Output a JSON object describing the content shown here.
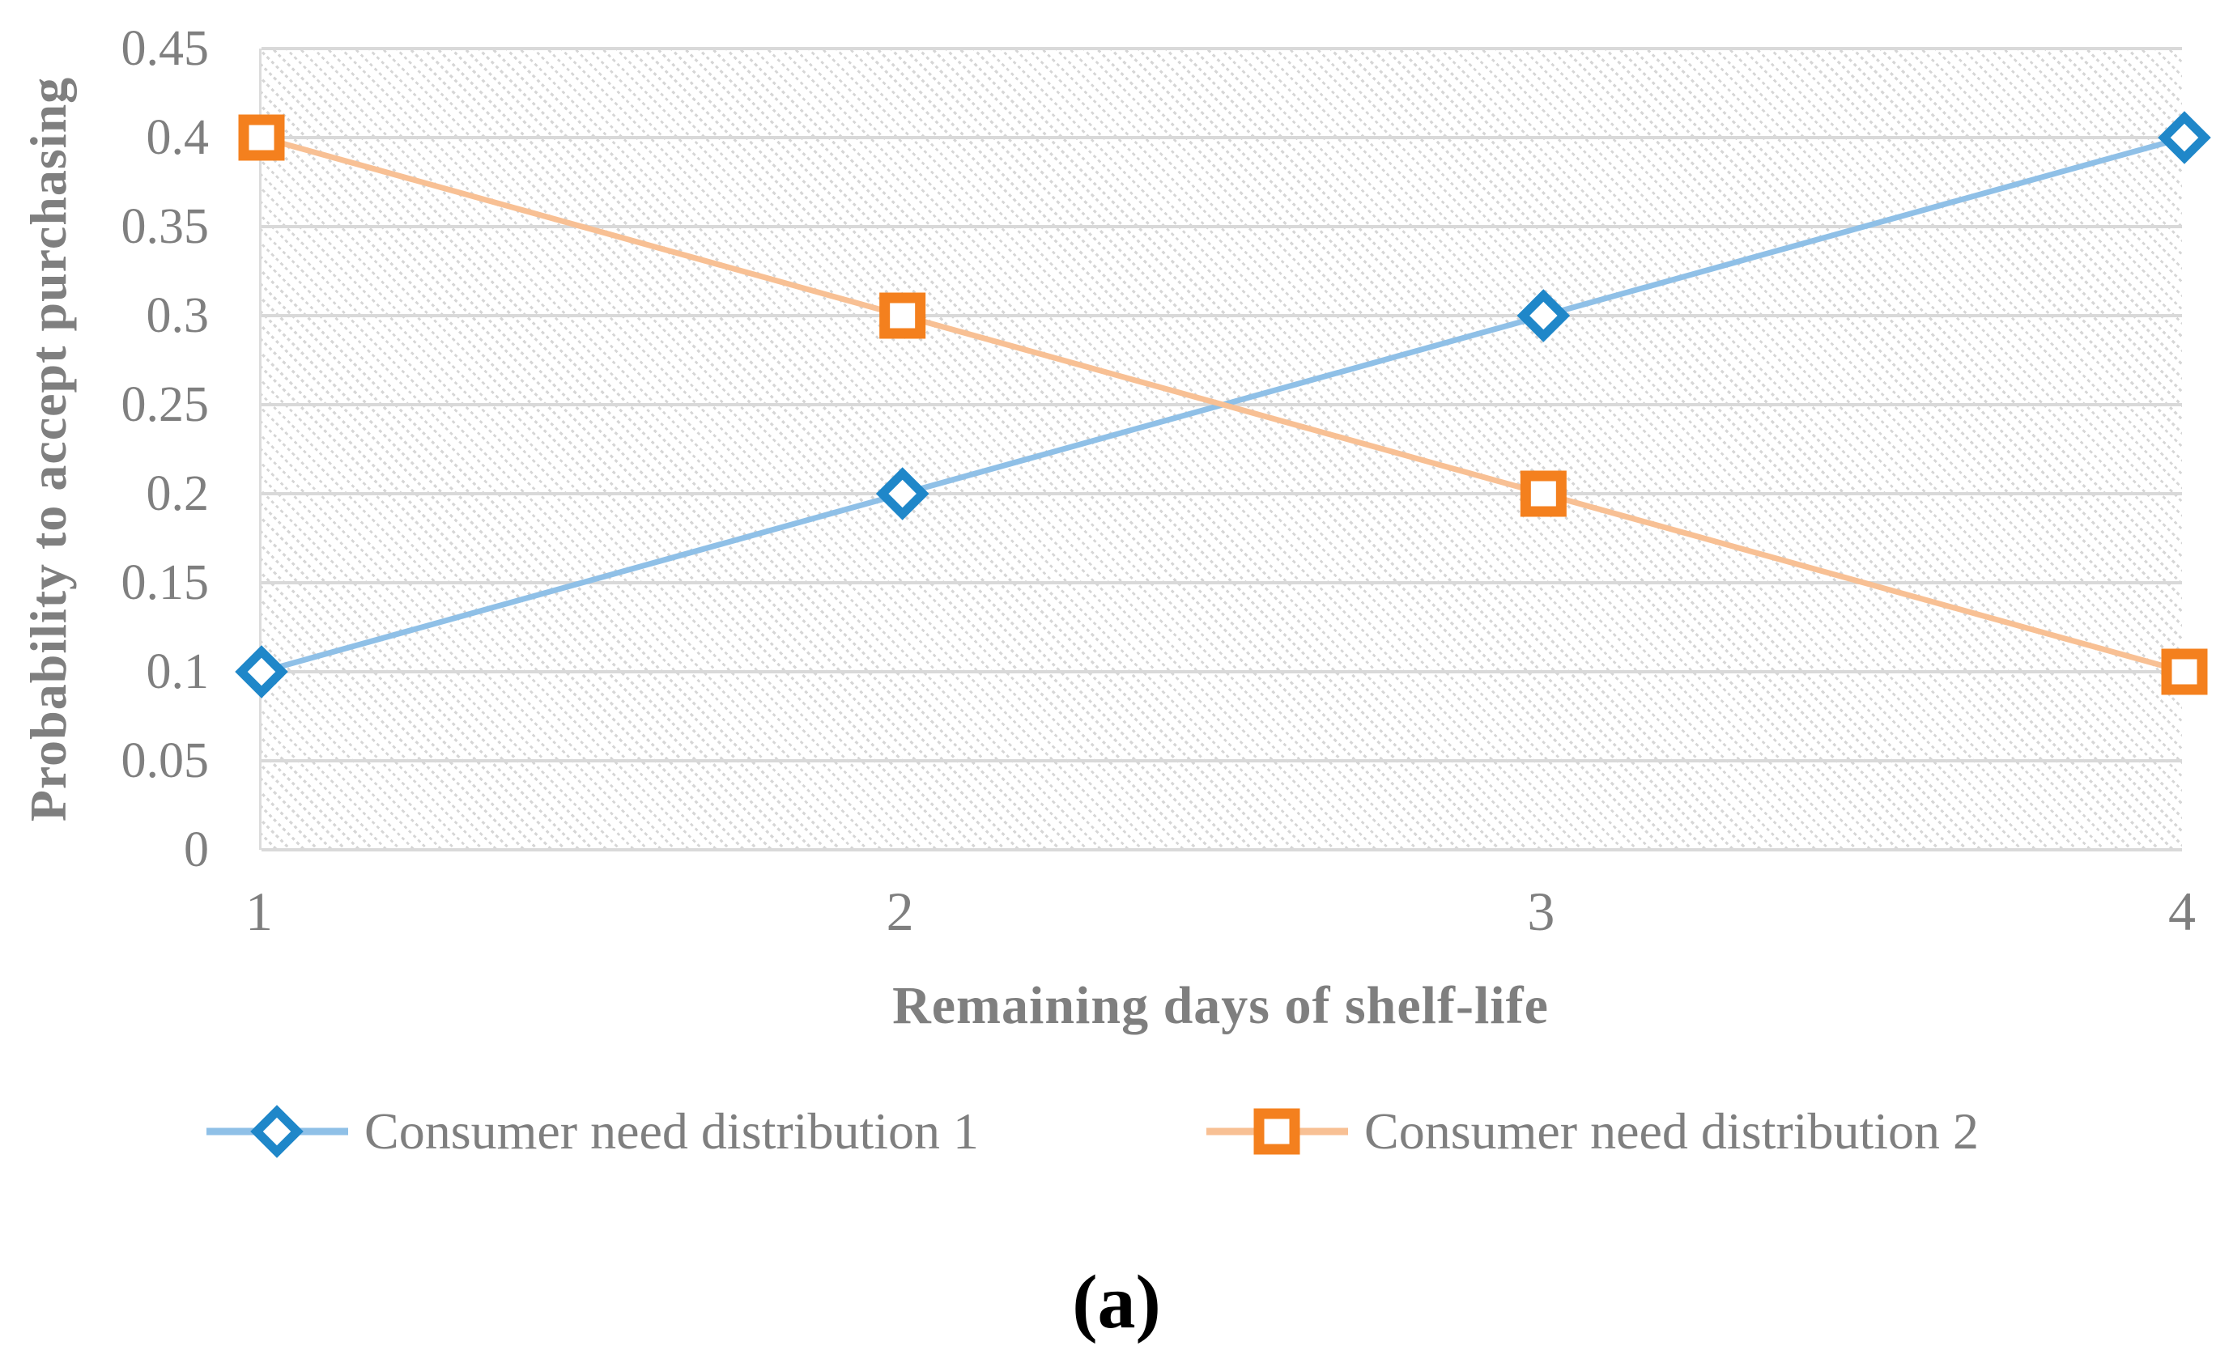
{
  "chart_data": {
    "type": "line",
    "x": [
      1,
      2,
      3,
      4
    ],
    "xticks": [
      "1",
      "2",
      "3",
      "4"
    ],
    "yticks": [
      "0",
      "0.05",
      "0.1",
      "0.15",
      "0.2",
      "0.25",
      "0.3",
      "0.35",
      "0.4",
      "0.45"
    ],
    "ylim": [
      0,
      0.45
    ],
    "ytick_step": 0.05,
    "xlabel": "Remaining days of shelf-life",
    "ylabel": "Probability to accept purchasing",
    "grid": "horizontal",
    "plot_background": "diagonal-dotted-hatch",
    "legend_position": "bottom",
    "series": [
      {
        "name": "Consumer need distribution 1",
        "marker": "diamond",
        "marker_color": "#1f87c9",
        "line_color": "#8fc0e7",
        "values": [
          0.1,
          0.2,
          0.3,
          0.4
        ]
      },
      {
        "name": "Consumer need distribution 2",
        "marker": "square",
        "marker_color": "#f4801e",
        "line_color": "#f8c094",
        "values": [
          0.4,
          0.3,
          0.2,
          0.1
        ]
      }
    ],
    "colors": {
      "gridline": "#d9d9d9",
      "hatch": "#d6d6d6",
      "axis_text": "#7f7f7f",
      "caption_text": "#000000"
    }
  },
  "caption": "(a)"
}
